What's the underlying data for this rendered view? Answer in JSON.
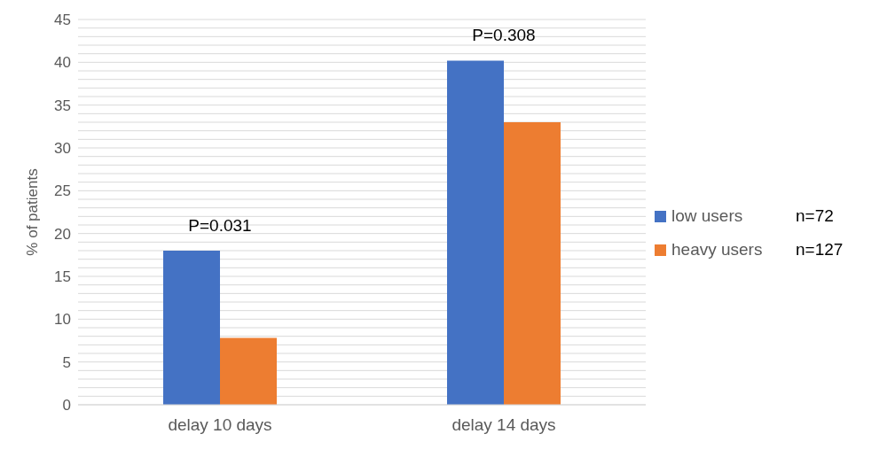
{
  "chart_data": {
    "type": "bar",
    "ylabel": "% of patients",
    "categories": [
      "delay 10 days",
      "delay 14 days"
    ],
    "series": [
      {
        "name": "low users",
        "color": "#4472c4",
        "values": [
          18.0,
          40.2
        ]
      },
      {
        "name": "heavy users",
        "color": "#ed7d31",
        "values": [
          7.8,
          33.0
        ]
      }
    ],
    "ylim": [
      0,
      45
    ],
    "yticks": [
      0,
      {
        "value": 1,
        "label": null
      },
      {
        "value": 2,
        "label": null
      },
      {
        "value": 3,
        "label": null
      },
      {
        "value": 4,
        "label": null
      },
      5,
      {
        "value": 6,
        "label": null
      },
      {
        "value": 7,
        "label": null
      },
      {
        "value": 8,
        "label": null
      },
      {
        "value": 9,
        "label": null
      },
      10,
      {
        "value": 11,
        "label": null
      },
      {
        "value": 12,
        "label": null
      },
      {
        "value": 13,
        "label": null
      },
      {
        "value": 14,
        "label": null
      },
      15,
      {
        "value": 16,
        "label": null
      },
      {
        "value": 17,
        "label": null
      },
      {
        "value": 18,
        "label": null
      },
      {
        "value": 19,
        "label": null
      },
      20,
      {
        "value": 21,
        "label": null
      },
      {
        "value": 22,
        "label": null
      },
      {
        "value": 23,
        "label": null
      },
      {
        "value": 24,
        "label": null
      },
      25,
      {
        "value": 26,
        "label": null
      },
      {
        "value": 27,
        "label": null
      },
      {
        "value": 28,
        "label": null
      },
      {
        "value": 29,
        "label": null
      },
      30,
      {
        "value": 31,
        "label": null
      },
      {
        "value": 32,
        "label": null
      },
      {
        "value": 33,
        "label": null
      },
      {
        "value": 34,
        "label": null
      },
      35,
      {
        "value": 36,
        "label": null
      },
      {
        "value": 37,
        "label": null
      },
      {
        "value": 38,
        "label": null
      },
      {
        "value": 39,
        "label": null
      },
      40,
      {
        "value": 41,
        "label": null
      },
      {
        "value": 42,
        "label": null
      },
      {
        "value": 43,
        "label": null
      },
      {
        "value": 44,
        "label": null
      },
      45
    ],
    "grid": "y",
    "legend": "right",
    "annotations": [
      "P=0.031",
      "P=0.308",
      "n=72",
      "n=127"
    ]
  }
}
